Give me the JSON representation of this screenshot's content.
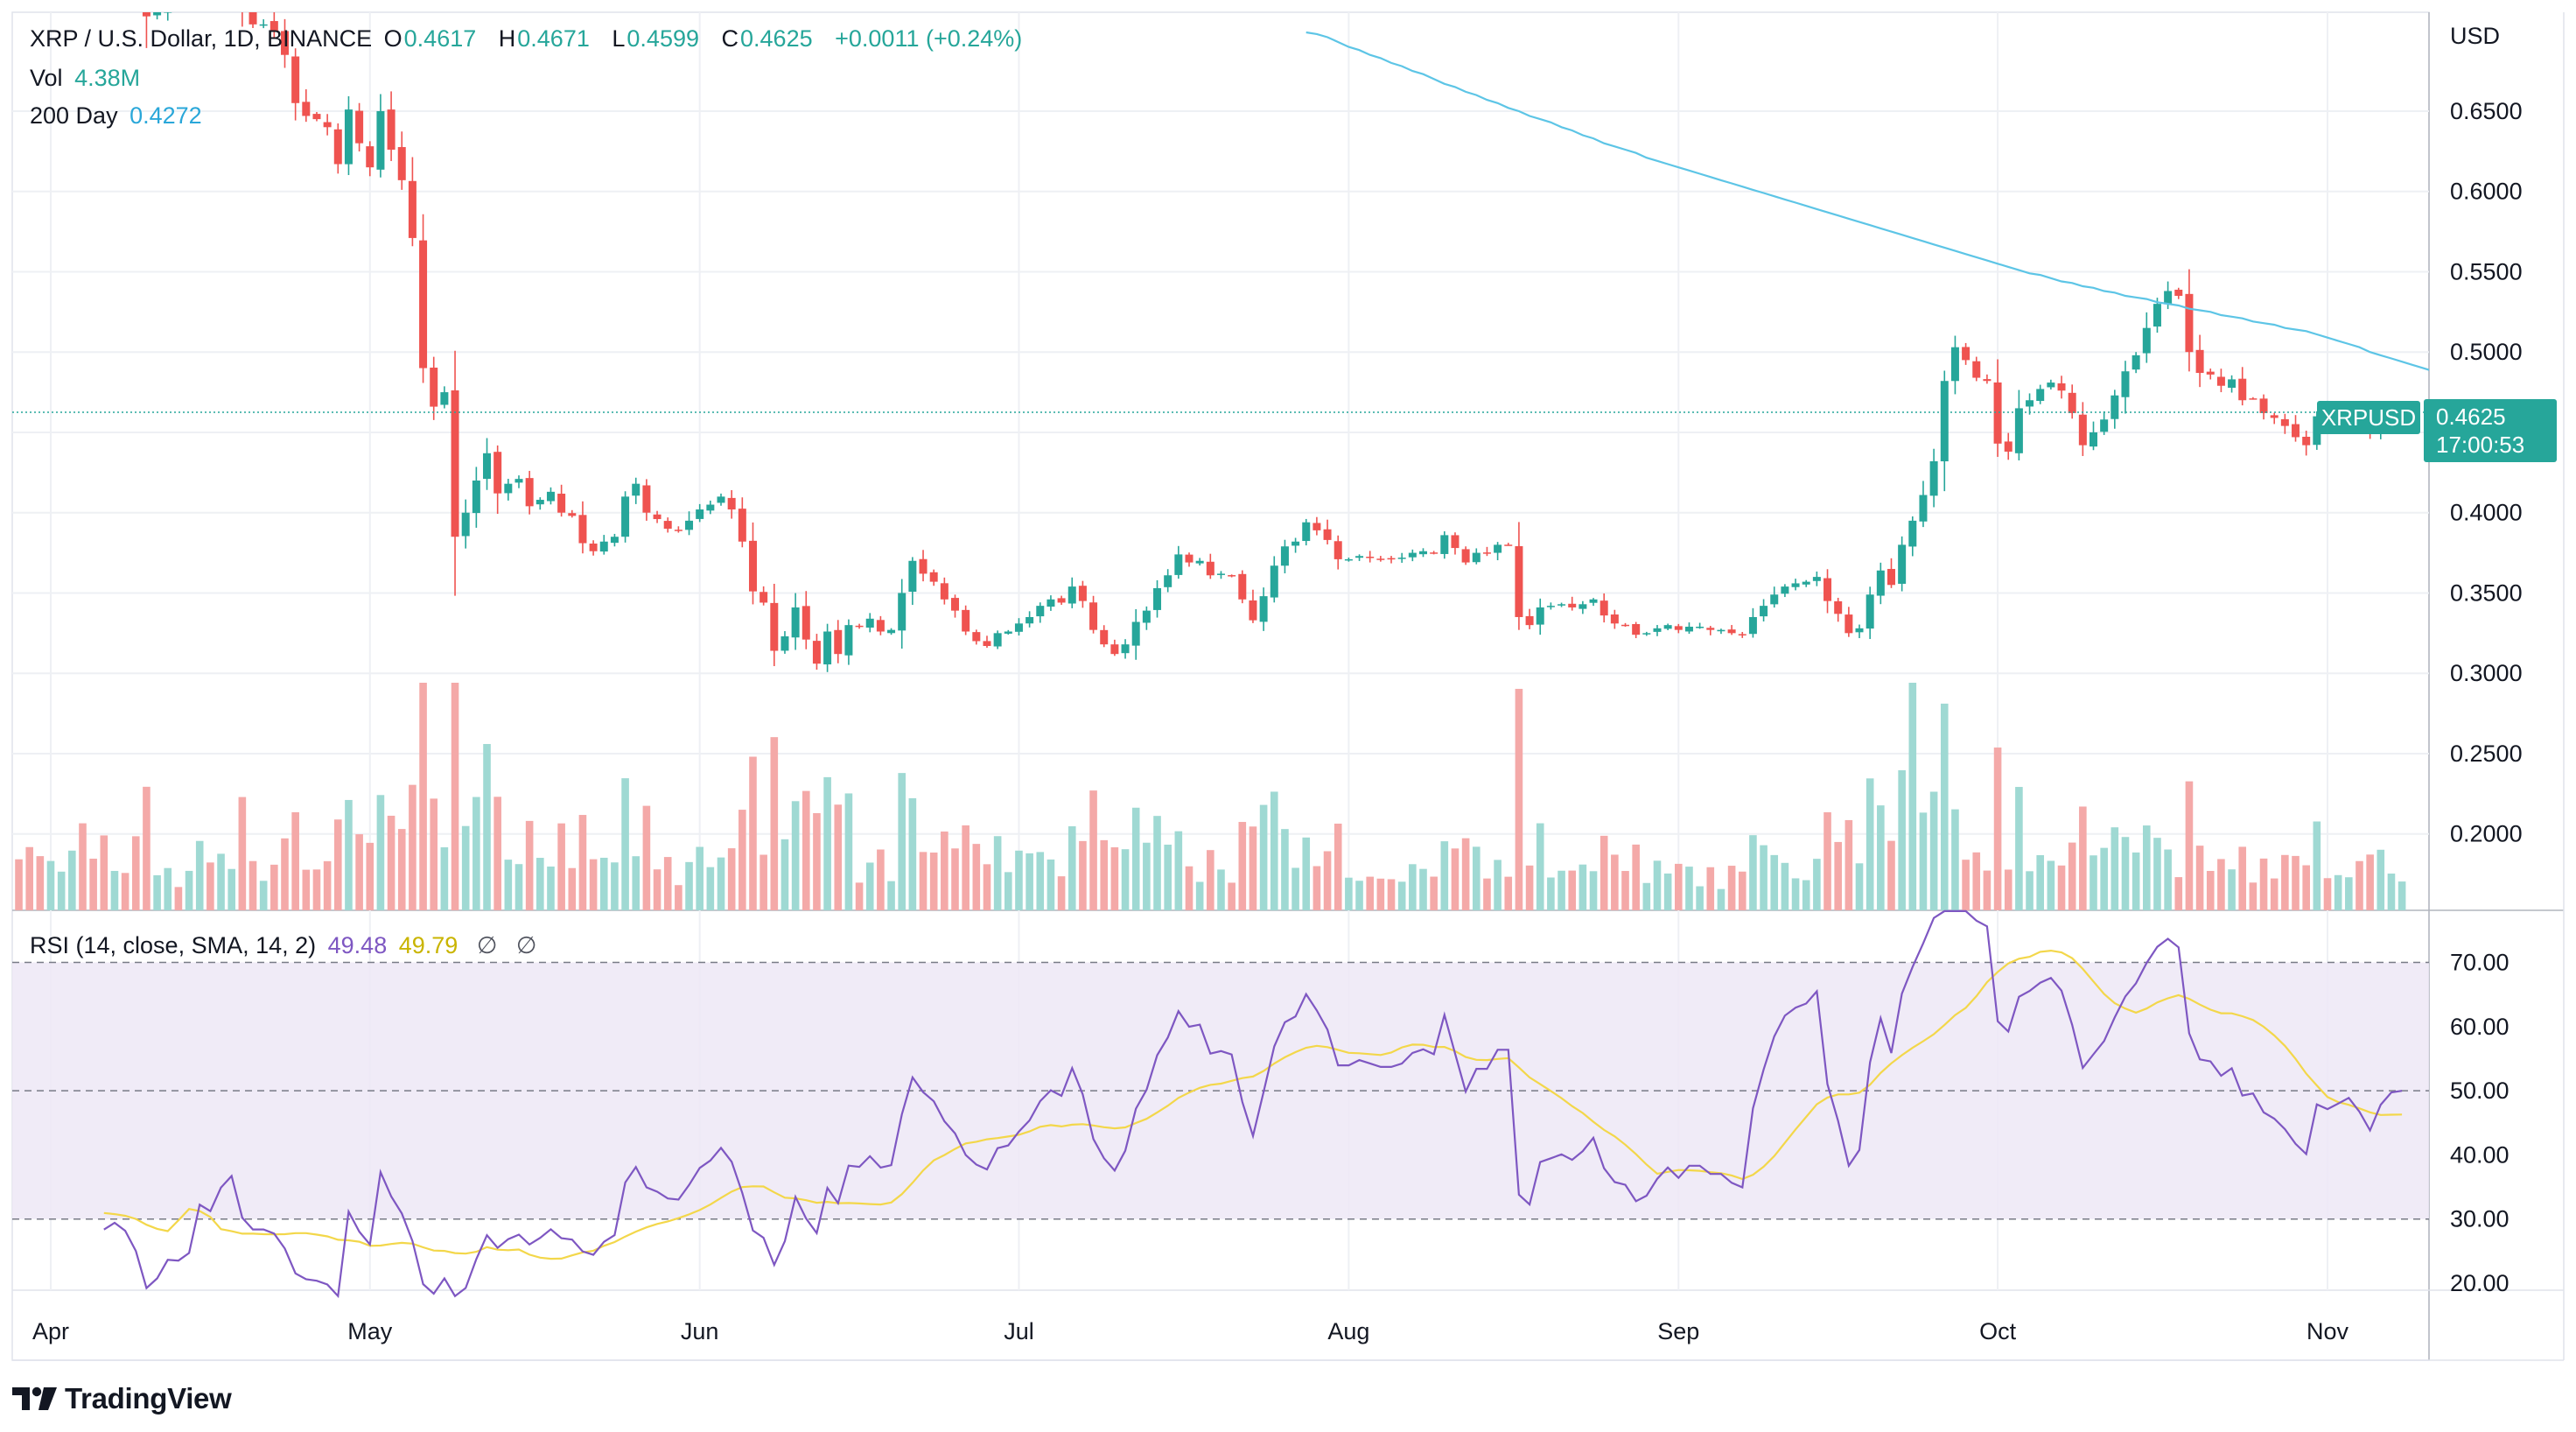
{
  "legend": {
    "title": "XRP / U.S. Dollar, 1D, BINANCE",
    "open_label": "O",
    "open": "0.4617",
    "high_label": "H",
    "high": "0.4671",
    "low_label": "L",
    "low": "0.4599",
    "close_label": "C",
    "close": "0.4625",
    "change": "+0.0011 (+0.24%)",
    "vol_label": "Vol",
    "vol": "4.38M",
    "ma_label": "200 Day",
    "ma": "0.4272",
    "rsi_label": "RSI (14, close, SMA, 14, 2)",
    "rsi": "49.48",
    "rsi_ma": "49.79",
    "rsi_extra1": "∅",
    "rsi_extra2": "∅"
  },
  "price_tag": {
    "symbol": "XRPUSD",
    "price": "0.4625",
    "countdown": "17:00:53"
  },
  "brand": {
    "name": "TradingView"
  },
  "colors": {
    "up": "#26a69a",
    "down": "#ef5350",
    "ma": "#5dc5e6",
    "rsi": "#7e57c2",
    "rsi_ma": "#f3d74a",
    "rsi_band": "#ede7f6"
  },
  "chart_data": [
    {
      "type": "candlestick",
      "title": "XRP / U.S. Dollar, 1D, BINANCE",
      "currency_label": "USD",
      "ylim": [
        0.16,
        0.72
      ],
      "y_ticks": [
        "0.6500",
        "0.6000",
        "0.5500",
        "0.5000",
        "0.4000",
        "0.3500",
        "0.3000",
        "0.2500",
        "0.2000"
      ],
      "x_ticks": [
        "Apr",
        "May",
        "Jun",
        "Jul",
        "Aug",
        "Sep",
        "Oct",
        "Nov"
      ],
      "x_tick_dates": [
        "04-01",
        "05-01",
        "06-01",
        "07-01",
        "08-01",
        "09-01",
        "10-01",
        "11-01"
      ],
      "start_date": "2022-03-29",
      "close": [
        0.837,
        0.823,
        0.813,
        0.827,
        0.832,
        0.851,
        0.821,
        0.806,
        0.779,
        0.781,
        0.775,
        0.757,
        0.709,
        0.713,
        0.721,
        0.72,
        0.723,
        0.743,
        0.737,
        0.747,
        0.752,
        0.716,
        0.704,
        0.704,
        0.7,
        0.685,
        0.655,
        0.647,
        0.645,
        0.64,
        0.617,
        0.651,
        0.63,
        0.615,
        0.65,
        0.626,
        0.607,
        0.571,
        0.49,
        0.466,
        0.475,
        0.385,
        0.4,
        0.42,
        0.437,
        0.412,
        0.418,
        0.421,
        0.404,
        0.408,
        0.413,
        0.4,
        0.398,
        0.381,
        0.376,
        0.382,
        0.385,
        0.41,
        0.418,
        0.4,
        0.396,
        0.39,
        0.389,
        0.395,
        0.402,
        0.405,
        0.41,
        0.402,
        0.382,
        0.351,
        0.344,
        0.314,
        0.323,
        0.341,
        0.321,
        0.306,
        0.326,
        0.312,
        0.33,
        0.329,
        0.334,
        0.326,
        0.327,
        0.35,
        0.37,
        0.362,
        0.357,
        0.346,
        0.339,
        0.326,
        0.32,
        0.317,
        0.325,
        0.326,
        0.331,
        0.335,
        0.342,
        0.346,
        0.344,
        0.354,
        0.345,
        0.327,
        0.318,
        0.312,
        0.318,
        0.332,
        0.339,
        0.353,
        0.361,
        0.374,
        0.369,
        0.37,
        0.361,
        0.362,
        0.361,
        0.346,
        0.333,
        0.348,
        0.367,
        0.379,
        0.382,
        0.394,
        0.389,
        0.383,
        0.371,
        0.371,
        0.373,
        0.372,
        0.371,
        0.371,
        0.372,
        0.375,
        0.376,
        0.375,
        0.386,
        0.378,
        0.369,
        0.375,
        0.375,
        0.38,
        0.38,
        0.335,
        0.33,
        0.341,
        0.342,
        0.343,
        0.341,
        0.343,
        0.346,
        0.336,
        0.331,
        0.33,
        0.324,
        0.325,
        0.328,
        0.33,
        0.327,
        0.329,
        0.329,
        0.327,
        0.327,
        0.325,
        0.324,
        0.335,
        0.342,
        0.349,
        0.354,
        0.356,
        0.357,
        0.36,
        0.345,
        0.337,
        0.325,
        0.328,
        0.349,
        0.364,
        0.355,
        0.38,
        0.395,
        0.411,
        0.432,
        0.482,
        0.503,
        0.495,
        0.484,
        0.482,
        0.443,
        0.438,
        0.465,
        0.47,
        0.477,
        0.481,
        0.476,
        0.462,
        0.442,
        0.45,
        0.458,
        0.473,
        0.488,
        0.498,
        0.515,
        0.53,
        0.538,
        0.535,
        0.5,
        0.487,
        0.486,
        0.479,
        0.483,
        0.47,
        0.471,
        0.462,
        0.459,
        0.454,
        0.447,
        0.442,
        0.46,
        0.458,
        0.46,
        0.462,
        0.457,
        0.45,
        0.458,
        0.462,
        0.4625
      ],
      "ma_name": "200 Day",
      "ma_start_index": 121,
      "ma": [
        0.699,
        0.698,
        0.696,
        0.693,
        0.69,
        0.688,
        0.685,
        0.683,
        0.68,
        0.678,
        0.675,
        0.673,
        0.67,
        0.667,
        0.665,
        0.662,
        0.66,
        0.657,
        0.655,
        0.652,
        0.65,
        0.647,
        0.645,
        0.643,
        0.64,
        0.638,
        0.635,
        0.633,
        0.63,
        0.628,
        0.626,
        0.624,
        0.621,
        0.619,
        0.617,
        0.615,
        0.613,
        0.611,
        0.609,
        0.607,
        0.605,
        0.603,
        0.601,
        0.599,
        0.597,
        0.595,
        0.593,
        0.591,
        0.589,
        0.587,
        0.585,
        0.583,
        0.581,
        0.579,
        0.577,
        0.575,
        0.573,
        0.571,
        0.569,
        0.567,
        0.565,
        0.563,
        0.561,
        0.559,
        0.557,
        0.555,
        0.553,
        0.551,
        0.549,
        0.548,
        0.546,
        0.544,
        0.543,
        0.541,
        0.54,
        0.538,
        0.537,
        0.535,
        0.534,
        0.533,
        0.531,
        0.53,
        0.529,
        0.527,
        0.526,
        0.525,
        0.523,
        0.522,
        0.521,
        0.519,
        0.518,
        0.517,
        0.515,
        0.514,
        0.513,
        0.511,
        0.509,
        0.507,
        0.505,
        0.503,
        0.5,
        0.498,
        0.496,
        0.494,
        0.492,
        0.49,
        0.488,
        0.486,
        0.484,
        0.482,
        0.48,
        0.478,
        0.476,
        0.474,
        0.473,
        0.471,
        0.469,
        0.467,
        0.465,
        0.463,
        0.462,
        0.46,
        0.458,
        0.456,
        0.454,
        0.452,
        0.451,
        0.449,
        0.447,
        0.445,
        0.443,
        0.441,
        0.439,
        0.437,
        0.435,
        0.433,
        0.431,
        0.429,
        0.427
      ]
    },
    {
      "type": "bar",
      "name": "Vol",
      "last": "4.38M"
    },
    {
      "type": "line",
      "name": "RSI (14, close, SMA, 14, 2)",
      "ylim": [
        18,
        78
      ],
      "y_ticks": [
        "70.00",
        "60.00",
        "50.00",
        "40.00",
        "30.00",
        "20.00"
      ],
      "bands": [
        30,
        50,
        70
      ],
      "rsi_last": 49.48,
      "rsi_ma_last": 49.79
    }
  ]
}
